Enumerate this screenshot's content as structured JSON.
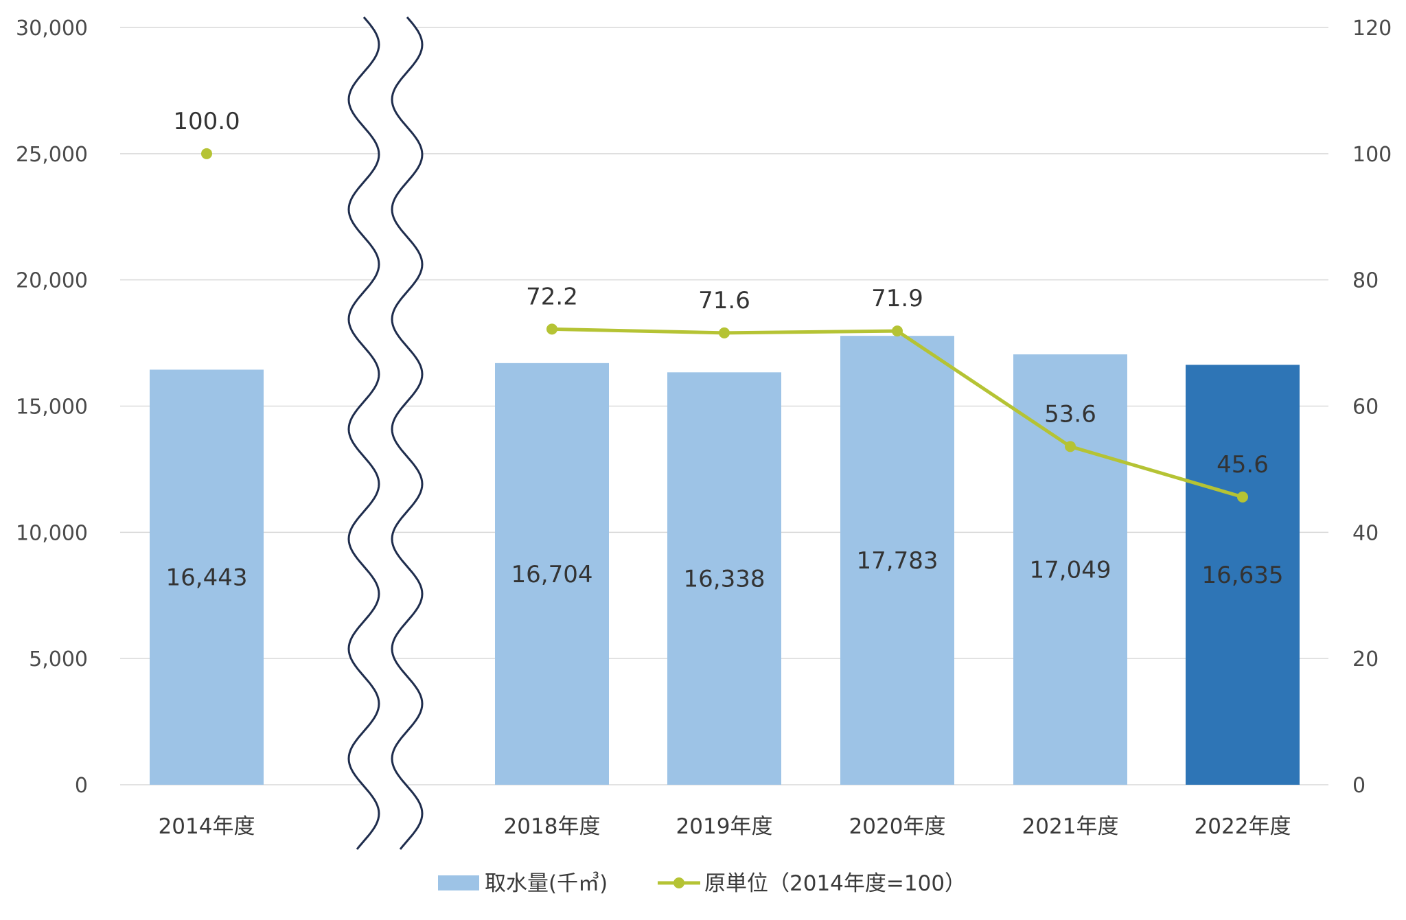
{
  "chart_data": {
    "type": "bar",
    "categories": [
      "2014年度",
      "2018年度",
      "2019年度",
      "2020年度",
      "2021年度",
      "2022年度"
    ],
    "axis_break_between": [
      "2014年度",
      "2018年度"
    ],
    "series": [
      {
        "name": "取水量(千㎥)",
        "type": "bar",
        "axis": "left",
        "values": [
          16443,
          16704,
          16338,
          17783,
          17049,
          16635
        ],
        "labels": [
          "16,443",
          "16,704",
          "16,338",
          "17,783",
          "17,049",
          "16,635"
        ],
        "color": "#9dc3e6",
        "highlight_color": "#2e75b6",
        "highlight_index": 5
      },
      {
        "name": "原単位（2014年度=100）",
        "type": "line",
        "axis": "right",
        "values": [
          100.0,
          72.2,
          71.6,
          71.9,
          53.6,
          45.6
        ],
        "labels": [
          "100.0",
          "72.2",
          "71.6",
          "71.9",
          "53.6",
          "45.6"
        ],
        "color": "#b5c334",
        "line_broken_after_index": 0
      }
    ],
    "y_left": {
      "min": 0,
      "max": 30000,
      "ticks": [
        "0",
        "5,000",
        "10,000",
        "15,000",
        "20,000",
        "25,000",
        "30,000"
      ]
    },
    "y_right": {
      "min": 0,
      "max": 120,
      "ticks": [
        "0",
        "20",
        "40",
        "60",
        "80",
        "100",
        "120"
      ]
    },
    "grid": true,
    "legend_position": "bottom",
    "title": "",
    "xlabel": "",
    "ylabel": ""
  }
}
